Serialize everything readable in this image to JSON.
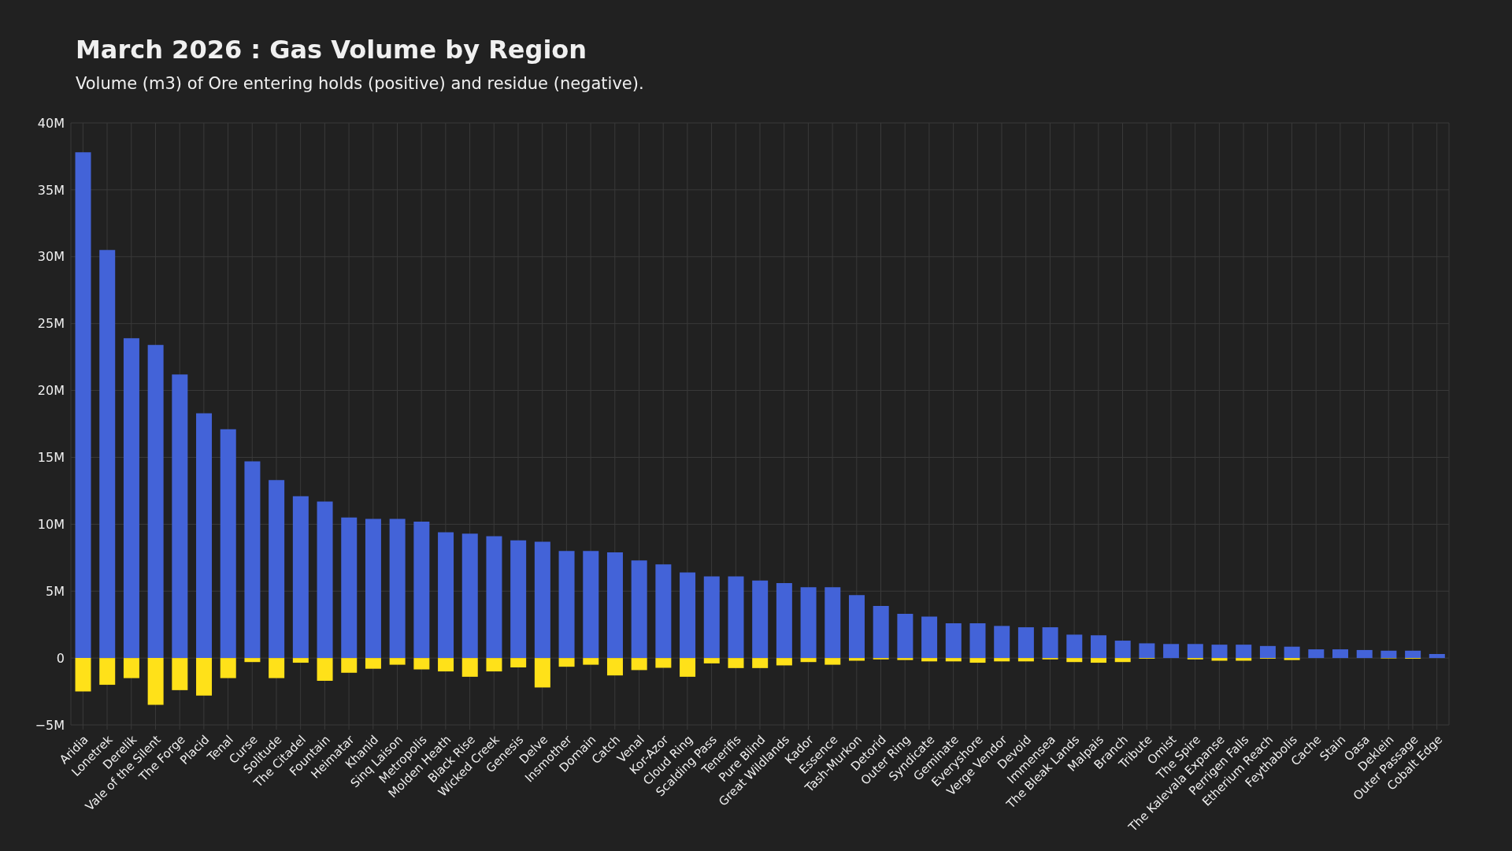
{
  "chart_data": {
    "type": "bar",
    "title": "March 2026 : Gas Volume by Region",
    "subtitle": "Volume (m3) of Ore entering holds (positive) and residue (negative).",
    "categories": [
      "Aridia",
      "Lonetrek",
      "Derelik",
      "Vale of the Silent",
      "The Forge",
      "Placid",
      "Tenal",
      "Curse",
      "Solitude",
      "The Citadel",
      "Fountain",
      "Heimatar",
      "Khanid",
      "Sinq Laison",
      "Metropolis",
      "Molden Heath",
      "Black Rise",
      "Wicked Creek",
      "Genesis",
      "Delve",
      "Insmother",
      "Domain",
      "Catch",
      "Venal",
      "Kor-Azor",
      "Cloud Ring",
      "Scalding Pass",
      "Tenerifis",
      "Pure Blind",
      "Great Wildlands",
      "Kador",
      "Essence",
      "Tash-Murkon",
      "Detorid",
      "Outer Ring",
      "Syndicate",
      "Geminate",
      "Everyshore",
      "Verge Vendor",
      "Devoid",
      "Immensea",
      "The Bleak Lands",
      "Malpais",
      "Branch",
      "Tribute",
      "Omist",
      "The Spire",
      "The Kalevala Expanse",
      "Perrigen Falls",
      "Etherium Reach",
      "Feythabolis",
      "Cache",
      "Stain",
      "Oasa",
      "Deklein",
      "Outer Passage",
      "Cobalt Edge"
    ],
    "series": [
      {
        "color": "#4363d8",
        "values": [
          37800000,
          30500000,
          23900000,
          23400000,
          21200000,
          18300000,
          17100000,
          14700000,
          13300000,
          12100000,
          11700000,
          10500000,
          10400000,
          10400000,
          10200000,
          9400000,
          9300000,
          9100000,
          8800000,
          8700000,
          8000000,
          8000000,
          7900000,
          7300000,
          7000000,
          6400000,
          6100000,
          6100000,
          5800000,
          5600000,
          5300000,
          5300000,
          4700000,
          3900000,
          3300000,
          3100000,
          2600000,
          2600000,
          2400000,
          2300000,
          2300000,
          1750000,
          1700000,
          1300000,
          1100000,
          1050000,
          1050000,
          1000000,
          1000000,
          900000,
          850000,
          650000,
          650000,
          600000,
          550000,
          550000,
          300000
        ]
      },
      {
        "color": "#ffe119",
        "values": [
          -2500000,
          -2000000,
          -1500000,
          -3500000,
          -2400000,
          -2800000,
          -1500000,
          -300000,
          -1500000,
          -350000,
          -1700000,
          -1100000,
          -800000,
          -500000,
          -850000,
          -1000000,
          -1400000,
          -1000000,
          -700000,
          -2200000,
          -650000,
          -500000,
          -1300000,
          -900000,
          -730000,
          -1400000,
          -400000,
          -750000,
          -750000,
          -550000,
          -300000,
          -500000,
          -200000,
          -100000,
          -150000,
          -250000,
          -250000,
          -350000,
          -250000,
          -250000,
          -100000,
          -300000,
          -350000,
          -300000,
          -50000,
          0,
          -100000,
          -200000,
          -200000,
          -50000,
          -150000,
          0,
          0,
          null,
          -30000,
          -50000,
          0
        ]
      }
    ],
    "stacked": true,
    "ylim": [
      -5000000,
      40000000
    ],
    "yticks": [
      {
        "value": -5000000,
        "label": "−5M"
      },
      {
        "value": 0,
        "label": "0"
      },
      {
        "value": 5000000,
        "label": "5M"
      },
      {
        "value": 10000000,
        "label": "10M"
      },
      {
        "value": 15000000,
        "label": "15M"
      },
      {
        "value": 20000000,
        "label": "20M"
      },
      {
        "value": 25000000,
        "label": "25M"
      },
      {
        "value": 30000000,
        "label": "30M"
      },
      {
        "value": 35000000,
        "label": "35M"
      },
      {
        "value": 40000000,
        "label": "40M"
      }
    ],
    "grid": true,
    "legend": false
  }
}
